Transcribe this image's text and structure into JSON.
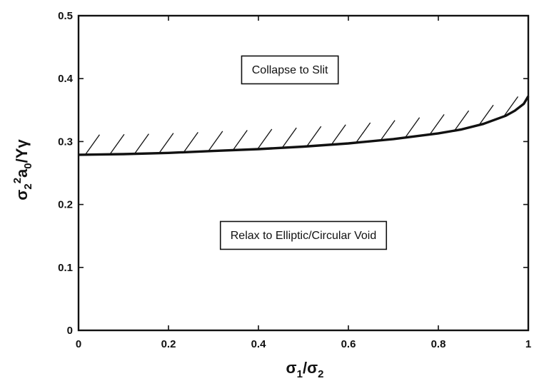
{
  "chart_data": {
    "type": "line",
    "title": "",
    "xlabel": {
      "base1": "σ",
      "sub1": "1",
      "slash": "/",
      "base2": "σ",
      "sub2": "2"
    },
    "ylabel": {
      "base1": "σ",
      "sub1": "2",
      "sup1": "2",
      "base2": "a",
      "sub2": "0",
      "rest": "/Yγ"
    },
    "xlim": [
      0,
      1
    ],
    "ylim": [
      0,
      0.5
    ],
    "x_ticks": [
      "0",
      "0.2",
      "0.4",
      "0.6",
      "0.8",
      "1"
    ],
    "y_ticks": [
      "0",
      "0.1",
      "0.2",
      "0.3",
      "0.4",
      "0.5"
    ],
    "grid": false,
    "legend": "none",
    "series": [
      {
        "x": [
          0,
          0.1,
          0.2,
          0.3,
          0.4,
          0.5,
          0.6,
          0.7,
          0.8,
          0.85,
          0.9,
          0.95,
          0.97,
          0.99,
          1.0
        ],
        "y": [
          0.279,
          0.28,
          0.282,
          0.285,
          0.288,
          0.292,
          0.297,
          0.304,
          0.313,
          0.319,
          0.328,
          0.341,
          0.349,
          0.36,
          0.372
        ]
      }
    ],
    "hatch": "upper side of boundary",
    "annotations": [
      {
        "text": "Collapse to Slit",
        "x": 0.47,
        "y": 0.415,
        "boxed": true
      },
      {
        "text": "Relax to Elliptic/Circular Void",
        "x": 0.5,
        "y": 0.152,
        "boxed": true
      }
    ]
  }
}
